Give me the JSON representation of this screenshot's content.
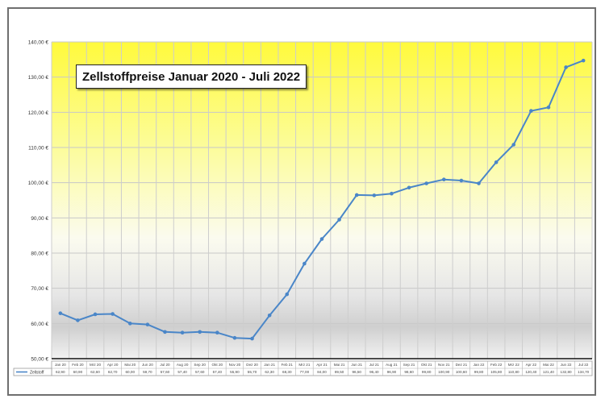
{
  "chart_data": {
    "type": "line",
    "title": "Zellstoffpreise Januar 2020 - Juli 2022",
    "xlabel": "",
    "ylabel": "",
    "ylim": [
      50,
      140
    ],
    "yticks": [
      "50,00 €",
      "60,00 €",
      "70,00 €",
      "80,00 €",
      "90,00 €",
      "100,00 €",
      "110,00 €",
      "120,00 €",
      "130,00 €",
      "140,00 €"
    ],
    "grid": true,
    "legend": "bottom-left table",
    "categories": [
      "Jan 20",
      "Feb 20",
      "Mrz 20",
      "Apr 20",
      "Mai 20",
      "Jun 20",
      "Jul 20",
      "Aug 20",
      "Sep 20",
      "Okt 20",
      "Nov 20",
      "Dez 20",
      "Jan 21",
      "Feb 21",
      "Mrz 21",
      "Apr 21",
      "Mai 21",
      "Jun 21",
      "Jul 21",
      "Aug 21",
      "Sep 21",
      "Okt 21",
      "Nov 21",
      "Dez 21",
      "Jan 22",
      "Feb 22",
      "Mrz 22",
      "Apr 22",
      "Mai 22",
      "Jun 22",
      "Jul 22"
    ],
    "series": [
      {
        "name": "Zellstoff",
        "color": "#4a86c8",
        "values": [
          62.9,
          60.9,
          62.6,
          62.7,
          60.0,
          59.7,
          57.6,
          57.4,
          57.6,
          57.4,
          55.9,
          55.7,
          62.3,
          68.3,
          77.0,
          84.0,
          89.5,
          96.5,
          96.4,
          96.9,
          98.6,
          99.8,
          100.9,
          100.6,
          99.8,
          105.8,
          110.8,
          120.4,
          121.4,
          132.8,
          134.7
        ]
      }
    ],
    "value_labels": [
      "62,90",
      "60,90",
      "62,60",
      "62,70",
      "60,00",
      "59,70",
      "57,60",
      "57,40",
      "57,60",
      "57,40",
      "55,90",
      "55,70",
      "62,30",
      "68,30",
      "77,00",
      "84,00",
      "89,50",
      "96,50",
      "96,40",
      "96,90",
      "98,60",
      "99,80",
      "100,90",
      "100,60",
      "99,80",
      "105,80",
      "110,80",
      "120,40",
      "121,40",
      "132,80",
      "134,70"
    ]
  }
}
